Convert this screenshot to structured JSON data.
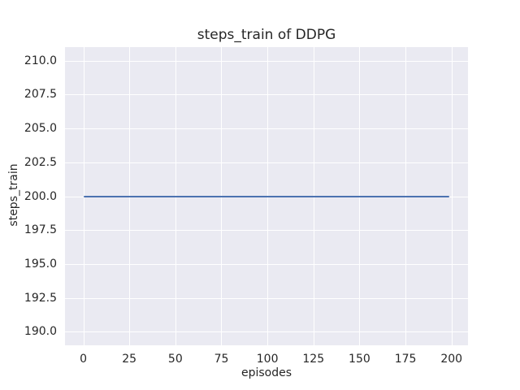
{
  "figure": {
    "title": "steps_train of DDPG",
    "xlabel": "episodes",
    "ylabel": "steps_train"
  },
  "chart_data": {
    "type": "line",
    "title": "steps_train of DDPG",
    "xlabel": "episodes",
    "ylabel": "steps_train",
    "xlim": [
      -9.95,
      208.95
    ],
    "ylim": [
      189.0,
      211.0
    ],
    "x_ticks": [
      0,
      25,
      50,
      75,
      100,
      125,
      150,
      175,
      200
    ],
    "x_tick_labels": [
      "0",
      "25",
      "50",
      "75",
      "100",
      "125",
      "150",
      "175",
      "200"
    ],
    "y_ticks": [
      190.0,
      192.5,
      195.0,
      197.5,
      200.0,
      202.5,
      205.0,
      207.5,
      210.0
    ],
    "y_tick_labels": [
      "190.0",
      "192.5",
      "195.0",
      "197.5",
      "200.0",
      "202.5",
      "205.0",
      "207.5",
      "210.0"
    ],
    "grid": true,
    "legend": false,
    "series": [
      {
        "name": "steps_train",
        "x": [
          0,
          199
        ],
        "y": [
          200,
          200
        ],
        "color": "#4C72B0",
        "note": "constant value 200 across all 200 episodes"
      }
    ],
    "colors": {
      "axes_background": "#EAEAF2",
      "grid": "#FFFFFF",
      "text": "#262626",
      "figure_background": "#FFFFFF"
    }
  }
}
